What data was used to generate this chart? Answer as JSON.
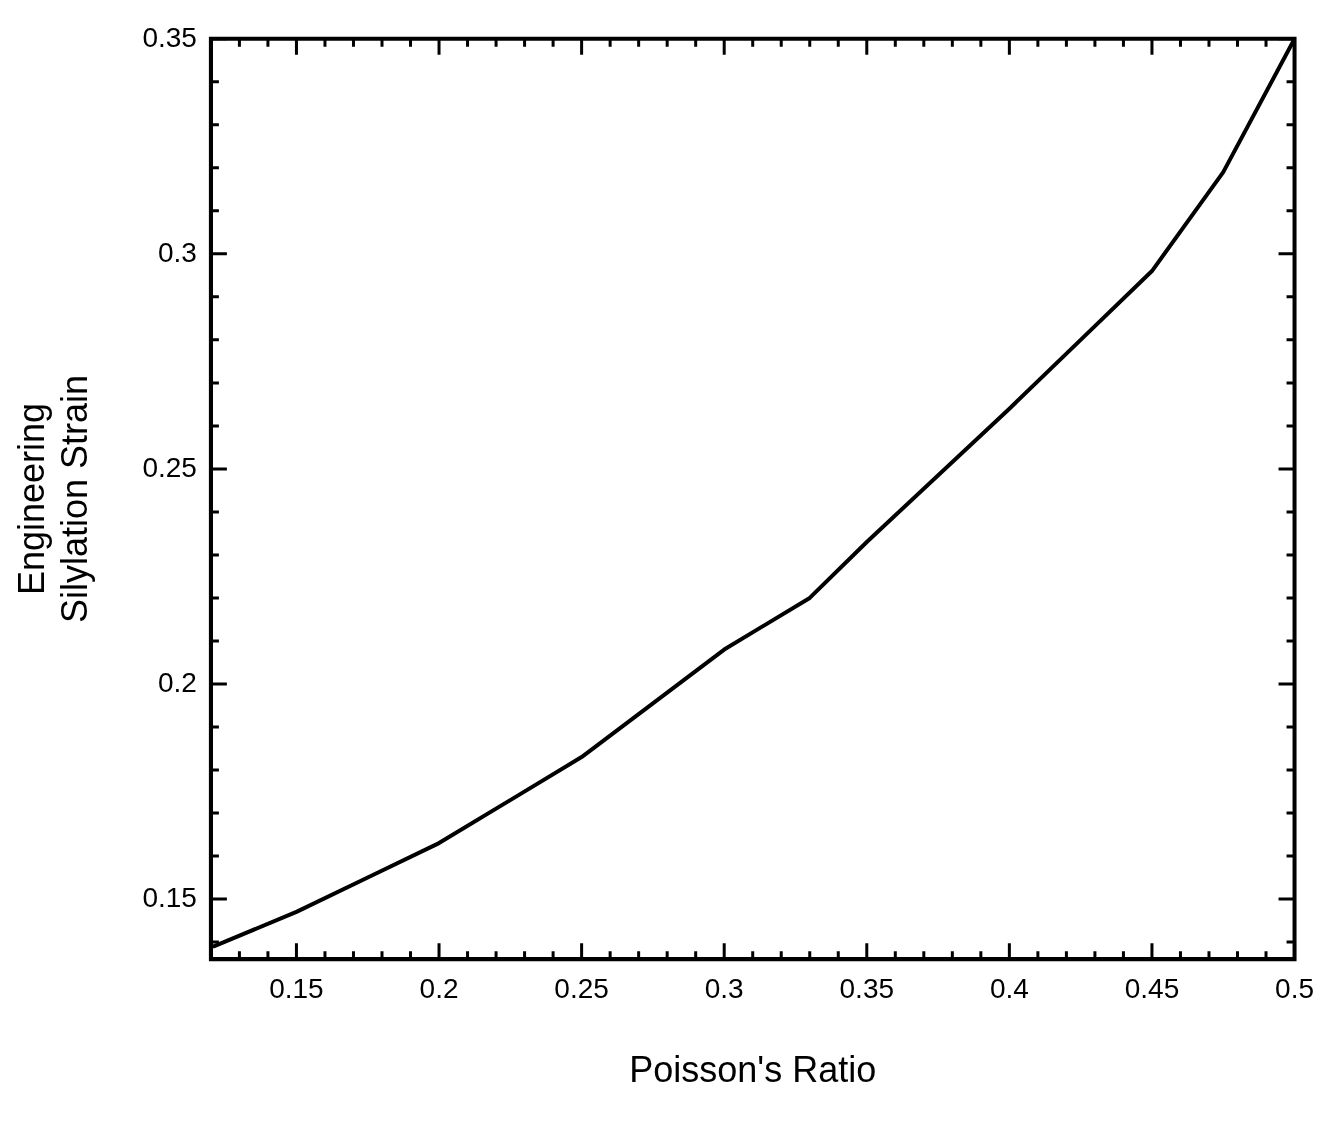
{
  "chart_data": {
    "type": "line",
    "xlabel": "Poisson's Ratio",
    "ylabel": "Engineering Silylation Strain",
    "x": [
      0.121,
      0.15,
      0.175,
      0.2,
      0.25,
      0.3,
      0.33,
      0.35,
      0.4,
      0.425,
      0.45,
      0.475,
      0.5
    ],
    "series": [
      {
        "color": "#000000",
        "values": [
          0.139,
          0.147,
          0.155,
          0.163,
          0.183,
          0.208,
          0.22,
          0.233,
          0.264,
          0.28,
          0.296,
          0.319,
          0.35
        ]
      }
    ],
    "xlim": [
      0.12,
      0.5
    ],
    "ylim": [
      0.136,
      0.35
    ],
    "xticks": [
      {
        "value": 0.13,
        "label": null
      },
      {
        "value": 0.14,
        "label": null
      },
      0.15,
      {
        "value": 0.16,
        "label": null
      },
      {
        "value": 0.17,
        "label": null
      },
      {
        "value": 0.18,
        "label": null
      },
      {
        "value": 0.19,
        "label": null
      },
      0.2,
      {
        "value": 0.21,
        "label": null
      },
      {
        "value": 0.22,
        "label": null
      },
      {
        "value": 0.23,
        "label": null
      },
      {
        "value": 0.24,
        "label": null
      },
      0.25,
      {
        "value": 0.26,
        "label": null
      },
      {
        "value": 0.27,
        "label": null
      },
      {
        "value": 0.28,
        "label": null
      },
      {
        "value": 0.29,
        "label": null
      },
      0.3,
      {
        "value": 0.31,
        "label": null
      },
      {
        "value": 0.32,
        "label": null
      },
      {
        "value": 0.33,
        "label": null
      },
      {
        "value": 0.34,
        "label": null
      },
      0.35,
      {
        "value": 0.36,
        "label": null
      },
      {
        "value": 0.37,
        "label": null
      },
      {
        "value": 0.38,
        "label": null
      },
      {
        "value": 0.39,
        "label": null
      },
      0.4,
      {
        "value": 0.41,
        "label": null
      },
      {
        "value": 0.42,
        "label": null
      },
      {
        "value": 0.43,
        "label": null
      },
      {
        "value": 0.44,
        "label": null
      },
      0.45,
      {
        "value": 0.46,
        "label": null
      },
      {
        "value": 0.47,
        "label": null
      },
      {
        "value": 0.48,
        "label": null
      },
      {
        "value": 0.49,
        "label": null
      },
      0.5
    ],
    "yticks": [
      {
        "value": 0.14,
        "label": null
      },
      0.15,
      {
        "value": 0.16,
        "label": null
      },
      {
        "value": 0.17,
        "label": null
      },
      {
        "value": 0.18,
        "label": null
      },
      {
        "value": 0.19,
        "label": null
      },
      0.2,
      {
        "value": 0.21,
        "label": null
      },
      {
        "value": 0.22,
        "label": null
      },
      {
        "value": 0.23,
        "label": null
      },
      {
        "value": 0.24,
        "label": null
      },
      0.25,
      {
        "value": 0.26,
        "label": null
      },
      {
        "value": 0.27,
        "label": null
      },
      {
        "value": 0.28,
        "label": null
      },
      {
        "value": 0.29,
        "label": null
      },
      0.3,
      {
        "value": 0.31,
        "label": null
      },
      {
        "value": 0.32,
        "label": null
      },
      {
        "value": 0.33,
        "label": null
      },
      {
        "value": 0.34,
        "label": null
      },
      0.35
    ],
    "grid": false,
    "legend": false,
    "marker": "none",
    "line_style": "solid"
  }
}
